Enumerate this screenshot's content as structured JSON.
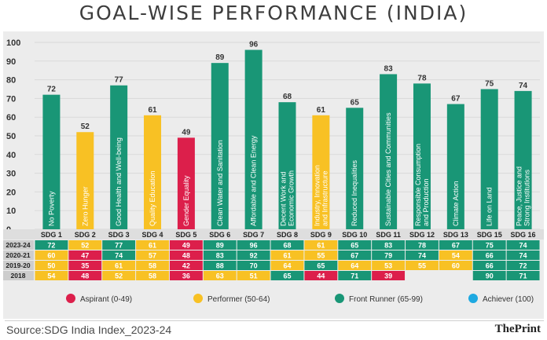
{
  "title": "GOAL-WISE PERFORMANCE (INDIA)",
  "source": "Source:SDG India Index_2023-24",
  "brand": "ThePrint",
  "colors": {
    "aspirant": "#dc1f4b",
    "performer": "#f8c124",
    "front_runner": "#199676",
    "achiever": "#1ea9e1",
    "row_label_bg": "#cdcdcd"
  },
  "chart_data": {
    "type": "bar",
    "title": "GOAL-WISE PERFORMANCE (INDIA)",
    "ylim": [
      0,
      100
    ],
    "yticks": [
      0,
      10,
      20,
      30,
      40,
      50,
      60,
      70,
      80,
      90,
      100
    ],
    "grid": true,
    "categories": [
      "SDG 1",
      "SDG 2",
      "SDG 3",
      "SDG 4",
      "SDG 5",
      "SDG 6",
      "SDG 7",
      "SDG 8",
      "SDG 9",
      "SDG 10",
      "SDG 11",
      "SDG 12",
      "SDG 13",
      "SDG 15",
      "SDG 16"
    ],
    "goal_names": [
      [
        "No Poverty"
      ],
      [
        "Zero Hunger"
      ],
      [
        "Good Health and Well-being"
      ],
      [
        "Quality Education"
      ],
      [
        "Gender Equality"
      ],
      [
        "Clean Water and Sanitation"
      ],
      [
        "Affordable and Clean Energy"
      ],
      [
        "Decent Work and",
        "Economic Growth"
      ],
      [
        "Industry, Innovation",
        "and Infrastructure"
      ],
      [
        "Reduced Inequalities"
      ],
      [
        "Sustainable Cities and Communities"
      ],
      [
        "Responsible Consumption",
        "and Production"
      ],
      [
        "Climate Action"
      ],
      [
        "Life on Land"
      ],
      [
        "Peace, Justice and",
        "Strong Institutions"
      ]
    ],
    "values": [
      72,
      52,
      77,
      61,
      49,
      89,
      96,
      68,
      61,
      65,
      83,
      78,
      67,
      75,
      74
    ],
    "table": {
      "rows": [
        {
          "year": "2023-24",
          "values": [
            72,
            52,
            77,
            61,
            49,
            89,
            96,
            68,
            61,
            65,
            83,
            78,
            67,
            75,
            74
          ]
        },
        {
          "year": "2020-21",
          "values": [
            60,
            47,
            74,
            57,
            48,
            83,
            92,
            61,
            55,
            67,
            79,
            74,
            54,
            66,
            74
          ]
        },
        {
          "year": "2019-20",
          "values": [
            50,
            35,
            61,
            58,
            42,
            88,
            70,
            64,
            65,
            64,
            53,
            55,
            60,
            66,
            72
          ]
        },
        {
          "year": "2018",
          "values": [
            54,
            48,
            52,
            58,
            36,
            63,
            51,
            65,
            44,
            71,
            39,
            null,
            null,
            90,
            71
          ]
        }
      ]
    },
    "legend": [
      {
        "label": "Aspirant (0-49)",
        "color": "#dc1f4b"
      },
      {
        "label": "Performer (50-64)",
        "color": "#f8c124"
      },
      {
        "label": "Front Runner (65-99)",
        "color": "#199676"
      },
      {
        "label": "Achiever (100)",
        "color": "#1ea9e1"
      }
    ],
    "legend_position": "bottom"
  }
}
